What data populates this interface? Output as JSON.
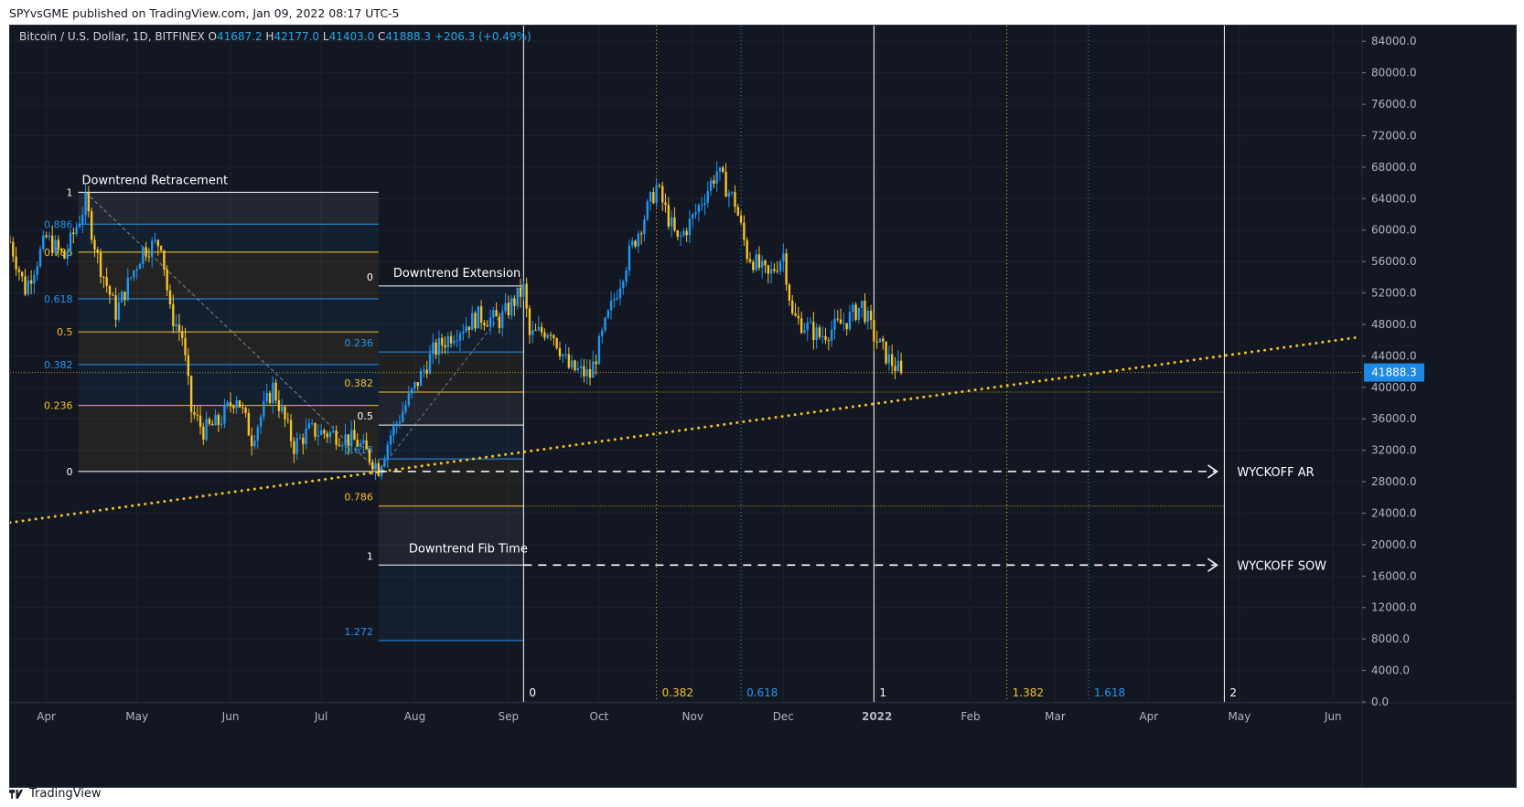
{
  "header": {
    "published": "SPYvsGME published on TradingView.com, Jan 09, 2022 08:17 UTC-5"
  },
  "footer": {
    "brand": "TradingView"
  },
  "symbol": {
    "name": "Bitcoin / U.S. Dollar, 1D, BITFINEX",
    "o_label": "O",
    "o": "41687.2",
    "h_label": "H",
    "h": "42177.0",
    "l_label": "L",
    "l": "41403.0",
    "c_label": "C",
    "c": "41888.3",
    "change": "+206.3 (+0.49%)"
  },
  "colors": {
    "background": "#131722",
    "candle_up": "#2196f3",
    "candle_down": "#f5c22a",
    "fib_gold": "#f5c22a",
    "fib_blue": "#2196f3",
    "white": "#ffffff",
    "text": "#b2b5be",
    "last_price_bg": "#1e88e5"
  },
  "chart_data": {
    "type": "candlestick",
    "symbol": "Bitcoin / U.S. Dollar",
    "interval": "1D",
    "exchange": "BITFINEX",
    "last_price": 41888.3,
    "ylim": [
      0,
      86000
    ],
    "y_ticks": [
      84000,
      80000,
      76000,
      72000,
      68000,
      64000,
      60000,
      56000,
      52000,
      48000,
      44000,
      40000,
      36000,
      32000,
      28000,
      24000,
      20000,
      16000,
      12000,
      8000,
      4000,
      0
    ],
    "y_tick_labels": [
      "84000.0",
      "80000.0",
      "76000.0",
      "72000.0",
      "68000.0",
      "64000.0",
      "60000.0",
      "56000.0",
      "52000.0",
      "48000.0",
      "44000.0",
      "40000.0",
      "36000.0",
      "32000.0",
      "28000.0",
      "24000.0",
      "20000.0",
      "16000.0",
      "12000.0",
      "8000.0",
      "4000.0",
      "0.0"
    ],
    "x_range": [
      "2021-03-20",
      "2022-06-10"
    ],
    "x_ticks": [
      {
        "date": "2021-04-01",
        "label": "Apr",
        "bold": false
      },
      {
        "date": "2021-05-01",
        "label": "May",
        "bold": false
      },
      {
        "date": "2021-06-01",
        "label": "Jun",
        "bold": false
      },
      {
        "date": "2021-07-01",
        "label": "Jul",
        "bold": false
      },
      {
        "date": "2021-08-01",
        "label": "Aug",
        "bold": false
      },
      {
        "date": "2021-09-01",
        "label": "Sep",
        "bold": false
      },
      {
        "date": "2021-10-01",
        "label": "Oct",
        "bold": false
      },
      {
        "date": "2021-11-01",
        "label": "Nov",
        "bold": false
      },
      {
        "date": "2021-12-01",
        "label": "Dec",
        "bold": false
      },
      {
        "date": "2022-01-01",
        "label": "2022",
        "bold": true
      },
      {
        "date": "2022-02-01",
        "label": "Feb",
        "bold": false
      },
      {
        "date": "2022-03-01",
        "label": "Mar",
        "bold": false
      },
      {
        "date": "2022-04-01",
        "label": "Apr",
        "bold": false
      },
      {
        "date": "2022-05-01",
        "label": "May",
        "bold": false
      },
      {
        "date": "2022-06-01",
        "label": "Jun",
        "bold": false
      }
    ],
    "price_path": [
      [
        "2021-03-20",
        58500
      ],
      [
        "2021-03-25",
        52500
      ],
      [
        "2021-04-01",
        59000
      ],
      [
        "2021-04-07",
        56500
      ],
      [
        "2021-04-14",
        63500
      ],
      [
        "2021-04-18",
        56500
      ],
      [
        "2021-04-24",
        49500
      ],
      [
        "2021-04-29",
        54000
      ],
      [
        "2021-05-03",
        57500
      ],
      [
        "2021-05-09",
        58500
      ],
      [
        "2021-05-12",
        49500
      ],
      [
        "2021-05-16",
        46500
      ],
      [
        "2021-05-19",
        37000
      ],
      [
        "2021-05-23",
        34500
      ],
      [
        "2021-05-28",
        35500
      ],
      [
        "2021-06-03",
        39000
      ],
      [
        "2021-06-08",
        33500
      ],
      [
        "2021-06-15",
        40000
      ],
      [
        "2021-06-22",
        32500
      ],
      [
        "2021-06-27",
        34500
      ],
      [
        "2021-07-06",
        34000
      ],
      [
        "2021-07-13",
        33000
      ],
      [
        "2021-07-20",
        29800
      ],
      [
        "2021-07-24",
        34000
      ],
      [
        "2021-08-01",
        40000
      ],
      [
        "2021-08-07",
        44500
      ],
      [
        "2021-08-14",
        47000
      ],
      [
        "2021-08-22",
        49000
      ],
      [
        "2021-08-29",
        48500
      ],
      [
        "2021-09-06",
        52500
      ],
      [
        "2021-09-08",
        46500
      ],
      [
        "2021-09-15",
        47500
      ],
      [
        "2021-09-21",
        42500
      ],
      [
        "2021-09-28",
        41500
      ],
      [
        "2021-10-04",
        49000
      ],
      [
        "2021-10-11",
        57000
      ],
      [
        "2021-10-20",
        65500
      ],
      [
        "2021-10-27",
        58500
      ],
      [
        "2021-11-01",
        61500
      ],
      [
        "2021-11-09",
        67500
      ],
      [
        "2021-11-15",
        63500
      ],
      [
        "2021-11-19",
        57000
      ],
      [
        "2021-11-26",
        54000
      ],
      [
        "2021-12-01",
        57000
      ],
      [
        "2021-12-04",
        49000
      ],
      [
        "2021-12-13",
        46500
      ],
      [
        "2021-12-22",
        48500
      ],
      [
        "2021-12-27",
        50500
      ],
      [
        "2021-12-31",
        46500
      ],
      [
        "2022-01-05",
        43500
      ],
      [
        "2022-01-09",
        41888
      ]
    ],
    "annotations": [
      {
        "type": "fib_retracement",
        "title": "Downtrend Retracement",
        "start": [
          "2021-04-14",
          64800
        ],
        "end": [
          "2021-07-20",
          29300
        ],
        "extend_to": "2021-07-20",
        "levels": [
          {
            "label": "1",
            "value": 64800,
            "color": "white"
          },
          {
            "label": "0.886",
            "value": 60750,
            "color": "blue"
          },
          {
            "label": "0.786",
            "value": 57200,
            "color": "gold"
          },
          {
            "label": "0.618",
            "value": 51250,
            "color": "blue"
          },
          {
            "label": "0.5",
            "value": 47050,
            "color": "gold"
          },
          {
            "label": "0.382",
            "value": 42900,
            "color": "blue"
          },
          {
            "label": "0.236",
            "value": 37700,
            "color": "gold"
          },
          {
            "label": "0",
            "value": 29300,
            "color": "white"
          }
        ]
      },
      {
        "type": "fib_extension",
        "title": "Downtrend Extension",
        "from": "2021-07-20",
        "to": "2021-09-06",
        "levels": [
          {
            "label": "0",
            "value": 52900,
            "color": "white"
          },
          {
            "label": "0.236",
            "value": 44500,
            "color": "blue"
          },
          {
            "label": "0.382",
            "value": 39400,
            "color": "gold"
          },
          {
            "label": "0.5",
            "value": 35200,
            "color": "white"
          },
          {
            "label": "0.618",
            "value": 30900,
            "color": "blue"
          },
          {
            "label": "0.786",
            "value": 24900,
            "color": "gold"
          },
          {
            "label": "1",
            "value": 17400,
            "color": "white"
          },
          {
            "label": "1.272",
            "value": 7800,
            "color": "blue"
          }
        ]
      },
      {
        "type": "fib_time",
        "title": "Downtrend Fib Time",
        "levels": [
          {
            "label": "0",
            "date": "2021-09-06",
            "color": "white"
          },
          {
            "label": "0.382",
            "date": "2021-10-20",
            "color": "gold"
          },
          {
            "label": "0.618",
            "date": "2021-11-17",
            "color": "blue"
          },
          {
            "label": "1",
            "date": "2021-12-31",
            "color": "white"
          },
          {
            "label": "1.382",
            "date": "2022-02-13",
            "color": "gold"
          },
          {
            "label": "1.618",
            "date": "2022-03-12",
            "color": "blue"
          },
          {
            "label": "2",
            "date": "2022-04-26",
            "color": "white"
          }
        ]
      },
      {
        "type": "trendline",
        "style": "dotted",
        "color": "gold",
        "from": [
          "2021-03-20",
          22800
        ],
        "to": [
          "2022-06-10",
          46400
        ]
      },
      {
        "type": "horizontal_arrow",
        "label": "WYCKOFF AR",
        "value": 29300,
        "from": "2021-07-20",
        "to": "2022-04-26"
      },
      {
        "type": "horizontal_arrow",
        "label": "WYCKOFF SOW",
        "value": 17400,
        "from": "2021-09-06",
        "to": "2022-04-26"
      }
    ]
  }
}
